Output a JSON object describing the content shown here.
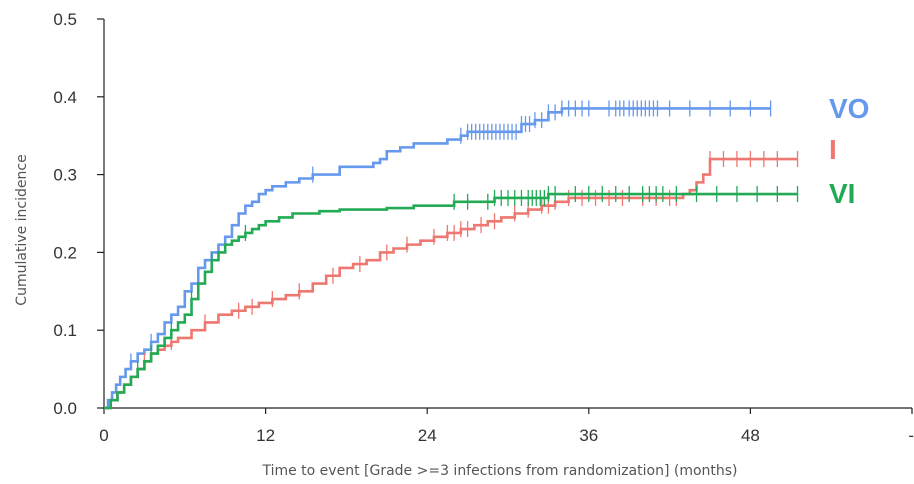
{
  "chart_data": {
    "type": "line",
    "xlabel": "Time to event [Grade >=3 infections from randomization] (months)",
    "ylabel": "Cumulative incidence",
    "xlim": [
      0,
      60
    ],
    "ylim": [
      0,
      0.5
    ],
    "x_ticks": [
      0,
      12,
      24,
      36,
      48,
      60
    ],
    "x_tick_labels": [
      "0",
      "12",
      "24",
      "36",
      "48",
      "-"
    ],
    "y_ticks": [
      0,
      0.1,
      0.2,
      0.3,
      0.4,
      0.5
    ],
    "y_tick_labels": [
      "0.0",
      "0.1",
      "0.2",
      "0.3",
      "0.4",
      "0.5"
    ],
    "grid": false,
    "legend": "right-side direct labels",
    "series": [
      {
        "name": "VO",
        "color": "#6699ee",
        "x": [
          0,
          0.3,
          0.6,
          0.9,
          1.2,
          1.6,
          2.0,
          2.5,
          3.0,
          3.5,
          4.0,
          4.5,
          5.0,
          5.5,
          6.0,
          6.5,
          7.0,
          7.5,
          8.0,
          8.5,
          9.0,
          9.5,
          10.0,
          10.5,
          11.0,
          11.5,
          12.0,
          12.5,
          13.5,
          14.5,
          15.5,
          16.5,
          17.5,
          18.5,
          19.5,
          20.0,
          20.5,
          21.0,
          22.0,
          23.0,
          24.0,
          25.0,
          25.5,
          26.5,
          27.0,
          29.0,
          31.0,
          32.0,
          33.0,
          34.0,
          36.0,
          49.5
        ],
        "y": [
          0,
          0.01,
          0.02,
          0.03,
          0.04,
          0.05,
          0.06,
          0.07,
          0.075,
          0.085,
          0.095,
          0.11,
          0.12,
          0.13,
          0.15,
          0.16,
          0.18,
          0.19,
          0.2,
          0.21,
          0.22,
          0.235,
          0.25,
          0.26,
          0.265,
          0.275,
          0.28,
          0.285,
          0.29,
          0.295,
          0.3,
          0.3,
          0.31,
          0.31,
          0.31,
          0.315,
          0.32,
          0.33,
          0.335,
          0.34,
          0.34,
          0.34,
          0.345,
          0.35,
          0.355,
          0.355,
          0.365,
          0.37,
          0.38,
          0.385,
          0.385,
          0.385
        ],
        "censor_x": [
          2.0,
          3.5,
          15.5,
          26.5,
          27.0,
          27.3,
          27.6,
          27.9,
          28.2,
          28.5,
          28.8,
          29.1,
          29.4,
          29.7,
          30.0,
          30.3,
          30.6,
          31.0,
          31.3,
          31.6,
          32.0,
          32.5,
          33.0,
          33.5,
          34.0,
          34.5,
          35.0,
          35.5,
          36.0,
          37.5,
          38.0,
          38.3,
          38.6,
          39.0,
          39.3,
          39.6,
          39.9,
          40.2,
          40.5,
          40.8,
          41.1,
          42.0,
          43.5,
          45.0,
          46.5,
          48.0,
          49.5
        ]
      },
      {
        "name": "I",
        "color": "#ee7770",
        "x": [
          0,
          0.5,
          1.0,
          1.5,
          2.0,
          2.5,
          3.0,
          3.5,
          4.0,
          4.5,
          5.0,
          5.5,
          6.5,
          7.5,
          8.5,
          9.5,
          10.5,
          11.5,
          12.5,
          13.5,
          14.5,
          15.5,
          16.5,
          17.5,
          18.5,
          19.5,
          20.5,
          21.5,
          22.5,
          23.5,
          24.5,
          25.5,
          26.5,
          27.5,
          28.5,
          29.5,
          30.5,
          31.5,
          32.5,
          33.5,
          34.5,
          35.5,
          37.0,
          43.0,
          43.5,
          44.0,
          44.5,
          45.0,
          51.5
        ],
        "y": [
          0,
          0.01,
          0.02,
          0.03,
          0.04,
          0.05,
          0.06,
          0.07,
          0.075,
          0.08,
          0.085,
          0.09,
          0.1,
          0.11,
          0.12,
          0.125,
          0.13,
          0.135,
          0.14,
          0.145,
          0.15,
          0.16,
          0.17,
          0.18,
          0.185,
          0.19,
          0.2,
          0.205,
          0.21,
          0.215,
          0.22,
          0.225,
          0.23,
          0.235,
          0.24,
          0.245,
          0.25,
          0.255,
          0.26,
          0.265,
          0.27,
          0.27,
          0.27,
          0.275,
          0.28,
          0.29,
          0.3,
          0.32,
          0.32
        ],
        "censor_x": [
          3.0,
          5.0,
          7.5,
          10.0,
          11.0,
          12.5,
          14.5,
          17.0,
          19.0,
          21.0,
          22.5,
          24.5,
          25.5,
          26.0,
          26.5,
          27.0,
          28.0,
          29.0,
          30.5,
          31.5,
          32.5,
          33.0,
          33.5,
          34.5,
          35.5,
          36.5,
          37.5,
          38.5,
          40.0,
          41.0,
          42.0,
          42.5,
          45.0,
          46.0,
          47.0,
          48.0,
          49.0,
          50.0,
          51.5
        ]
      },
      {
        "name": "VI",
        "color": "#22aa55",
        "x": [
          0,
          0.5,
          1.0,
          1.5,
          2.0,
          2.5,
          3.0,
          3.5,
          4.0,
          4.5,
          5.0,
          5.5,
          6.0,
          6.5,
          7.0,
          7.5,
          8.0,
          8.5,
          9.0,
          9.5,
          10.0,
          10.5,
          11.0,
          11.5,
          12.0,
          13.0,
          14.0,
          15.0,
          16.0,
          17.5,
          19.0,
          21.0,
          23.0,
          26.0,
          29.0,
          33.0,
          51.5
        ],
        "y": [
          0,
          0.01,
          0.02,
          0.03,
          0.04,
          0.05,
          0.06,
          0.07,
          0.08,
          0.09,
          0.1,
          0.11,
          0.12,
          0.14,
          0.16,
          0.175,
          0.19,
          0.2,
          0.21,
          0.215,
          0.22,
          0.225,
          0.23,
          0.235,
          0.24,
          0.245,
          0.25,
          0.25,
          0.253,
          0.255,
          0.255,
          0.257,
          0.26,
          0.265,
          0.27,
          0.275,
          0.275
        ],
        "censor_x": [
          2.5,
          3.5,
          5.0,
          6.5,
          8.0,
          10.5,
          26.0,
          27.0,
          28.5,
          29.0,
          29.5,
          30.0,
          30.5,
          31.0,
          31.5,
          31.8,
          32.1,
          32.4,
          32.7,
          33.0,
          33.5,
          35.0,
          36.0,
          37.0,
          38.0,
          39.0,
          40.0,
          40.5,
          41.0,
          41.5,
          42.5,
          44.0,
          45.5,
          47.0,
          48.5,
          50.0,
          51.5
        ]
      }
    ]
  }
}
